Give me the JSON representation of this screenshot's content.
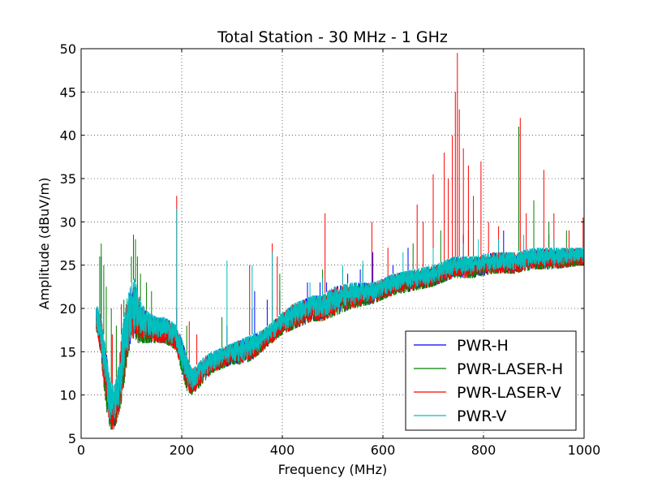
{
  "chart_data": {
    "type": "line",
    "title": "Total Station - 30 MHz - 1 GHz",
    "xlabel": "Frequency (MHz)",
    "ylabel": "Amplitude (dBuV/m)",
    "xlim": [
      0,
      1000
    ],
    "ylim": [
      5,
      50
    ],
    "xticks": [
      0,
      200,
      400,
      600,
      800,
      1000
    ],
    "yticks": [
      5,
      10,
      15,
      20,
      25,
      30,
      35,
      40,
      45,
      50
    ],
    "grid": true,
    "legend_position": "lower-right",
    "baseline": {
      "x": [
        30,
        38,
        45,
        52,
        58,
        65,
        72,
        80,
        90,
        100,
        106,
        112,
        120,
        135,
        150,
        165,
        180,
        190,
        200,
        210,
        220,
        230,
        245,
        260,
        280,
        300,
        320,
        340,
        360,
        380,
        400,
        420,
        440,
        460,
        480,
        500,
        540,
        580,
        620,
        660,
        700,
        740,
        780,
        820,
        860,
        900,
        940,
        1000
      ],
      "low": [
        17.5,
        15,
        11,
        7.5,
        6,
        6,
        7,
        9,
        13,
        16,
        16.5,
        16,
        16,
        16,
        16,
        16,
        15.5,
        15,
        12.5,
        10.5,
        10,
        10.5,
        11.5,
        12.5,
        13,
        13.5,
        13.5,
        14,
        15,
        16,
        17,
        17.5,
        18,
        18.5,
        18.5,
        19,
        20,
        20.5,
        21.5,
        22,
        22.5,
        23.5,
        23.5,
        24,
        24,
        24.5,
        24.5,
        25
      ],
      "high": [
        20.5,
        19.5,
        17,
        14,
        11.5,
        11,
        12.5,
        17,
        21,
        23,
        23.5,
        22,
        20.5,
        19.5,
        19,
        19,
        18.5,
        18,
        16.5,
        14.5,
        13,
        13.5,
        14.5,
        15,
        15.5,
        16,
        16.5,
        17,
        17.5,
        18.5,
        19.5,
        20.5,
        21,
        21.5,
        21.5,
        22.5,
        23,
        23,
        24,
        24.5,
        25,
        26,
        26,
        26.5,
        26.5,
        27,
        27,
        27
      ]
    },
    "series": [
      {
        "name": "PWR-H",
        "color": "#0000ff",
        "peaks": [
          [
            40,
            26
          ],
          [
            104,
            28.5
          ],
          [
            108,
            27.5
          ],
          [
            190,
            20
          ],
          [
            290,
            18
          ],
          [
            340,
            20
          ],
          [
            345,
            22
          ],
          [
            370,
            21
          ],
          [
            395,
            22
          ],
          [
            450,
            23
          ],
          [
            475,
            23
          ],
          [
            488,
            23
          ],
          [
            530,
            24
          ],
          [
            555,
            24.5
          ],
          [
            580,
            26.5
          ],
          [
            620,
            25
          ],
          [
            650,
            27
          ],
          [
            700,
            27.5
          ],
          [
            760,
            28.5
          ],
          [
            840,
            29
          ],
          [
            930,
            28.5
          ]
        ]
      },
      {
        "name": "PWR-LASER-H",
        "color": "#008000",
        "peaks": [
          [
            37,
            26
          ],
          [
            40,
            27.5
          ],
          [
            45,
            25
          ],
          [
            50,
            22.5
          ],
          [
            60,
            20
          ],
          [
            70,
            18
          ],
          [
            85,
            21
          ],
          [
            100,
            26
          ],
          [
            104,
            28.5
          ],
          [
            108,
            28
          ],
          [
            112,
            26
          ],
          [
            118,
            24
          ],
          [
            130,
            23
          ],
          [
            140,
            22
          ],
          [
            210,
            18
          ],
          [
            280,
            19
          ],
          [
            380,
            22
          ],
          [
            395,
            24
          ],
          [
            480,
            24.5
          ],
          [
            560,
            25
          ],
          [
            660,
            27.5
          ],
          [
            715,
            29
          ],
          [
            770,
            29
          ],
          [
            870,
            41
          ],
          [
            900,
            32.5
          ],
          [
            930,
            30
          ],
          [
            965,
            29
          ]
        ]
      },
      {
        "name": "PWR-LASER-V",
        "color": "#ff0000",
        "peaks": [
          [
            62,
            17
          ],
          [
            80,
            20.5
          ],
          [
            190,
            33
          ],
          [
            215,
            18.5
          ],
          [
            230,
            17
          ],
          [
            335,
            25
          ],
          [
            380,
            27.5
          ],
          [
            390,
            26
          ],
          [
            485,
            31
          ],
          [
            520,
            24.5
          ],
          [
            578,
            30
          ],
          [
            610,
            27
          ],
          [
            668,
            32
          ],
          [
            680,
            30
          ],
          [
            700,
            35.5
          ],
          [
            722,
            38
          ],
          [
            730,
            35
          ],
          [
            738,
            40
          ],
          [
            744,
            45
          ],
          [
            748,
            49.5
          ],
          [
            752,
            43
          ],
          [
            760,
            38.5
          ],
          [
            770,
            36.5
          ],
          [
            780,
            33
          ],
          [
            795,
            37
          ],
          [
            810,
            30
          ],
          [
            830,
            29.5
          ],
          [
            873,
            42
          ],
          [
            885,
            31
          ],
          [
            920,
            36
          ],
          [
            940,
            31
          ],
          [
            970,
            29
          ],
          [
            998,
            30.5
          ]
        ]
      },
      {
        "name": "PWR-V",
        "color": "#00bfbf",
        "peaks": [
          [
            190,
            31.5
          ],
          [
            290,
            25.5
          ],
          [
            340,
            25
          ],
          [
            380,
            26.5
          ],
          [
            455,
            23
          ],
          [
            480,
            23.5
          ],
          [
            520,
            25
          ],
          [
            560,
            25.5
          ],
          [
            640,
            26.5
          ],
          [
            700,
            27
          ],
          [
            760,
            27.5
          ],
          [
            790,
            28
          ],
          [
            830,
            28
          ],
          [
            880,
            28.5
          ],
          [
            940,
            28
          ]
        ]
      }
    ]
  }
}
